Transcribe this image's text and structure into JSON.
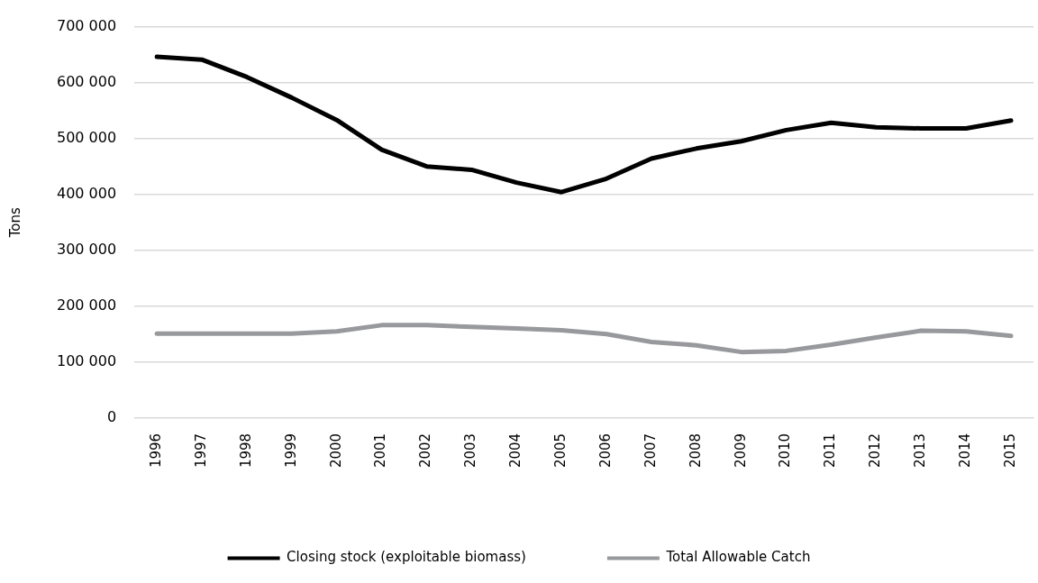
{
  "chart_data": {
    "type": "line",
    "ylabel": "Tons",
    "categories": [
      "1996",
      "1997",
      "1998",
      "1999",
      "2000",
      "2001",
      "2002",
      "2003",
      "2004",
      "2005",
      "2006",
      "2007",
      "2008",
      "2009",
      "2010",
      "2011",
      "2012",
      "2013",
      "2014",
      "2015"
    ],
    "series": [
      {
        "name": "Closing stock (exploitable biomass)",
        "color": "#000000",
        "values": [
          646000,
          641000,
          610000,
          573000,
          533000,
          480000,
          450000,
          444000,
          421000,
          404000,
          428000,
          464000,
          482000,
          495000,
          515000,
          528000,
          520000,
          518000,
          518000,
          532000
        ]
      },
      {
        "name": "Total Allowable Catch",
        "color": "#98999c",
        "values": [
          151000,
          151000,
          151000,
          151000,
          155000,
          166000,
          166000,
          163000,
          160000,
          157000,
          150000,
          136000,
          130000,
          118000,
          120000,
          131000,
          144000,
          156000,
          155000,
          147000
        ]
      }
    ],
    "ylim": [
      0,
      700000
    ],
    "yticks": [
      {
        "value": 0,
        "label": "0"
      },
      {
        "value": 100000,
        "label": "100 000"
      },
      {
        "value": 200000,
        "label": "200 000"
      },
      {
        "value": 300000,
        "label": "300 000"
      },
      {
        "value": 400000,
        "label": "400 000"
      },
      {
        "value": 500000,
        "label": "500 000"
      },
      {
        "value": 600000,
        "label": "600 000"
      },
      {
        "value": 700000,
        "label": "700 000"
      }
    ],
    "grid": "y",
    "legend": "bottom",
    "marker": "none",
    "line_style": "solid"
  }
}
